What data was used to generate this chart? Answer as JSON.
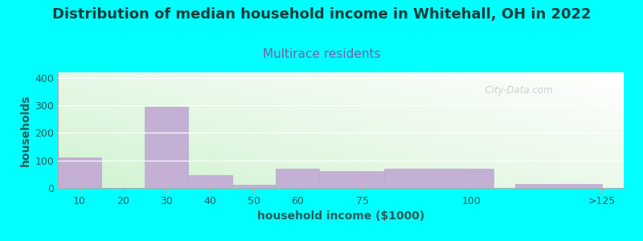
{
  "title": "Distribution of median household income in Whitehall, OH in 2022",
  "subtitle": "Multirace residents",
  "xlabel": "household income ($1000)",
  "ylabel": "households",
  "background_color": "#00FFFF",
  "bar_color": "#C4B0D5",
  "bar_edge_color": "#B8A8CC",
  "title_fontsize": 13,
  "title_fontweight": "bold",
  "title_color": "#1a3a3a",
  "subtitle_fontsize": 11,
  "subtitle_color": "#7B5EA7",
  "axis_label_fontsize": 10,
  "axis_label_color": "#2a5a5a",
  "tick_fontsize": 9,
  "watermark": "  City-Data.com",
  "ylim": [
    0,
    420
  ],
  "yticks": [
    0,
    100,
    200,
    300,
    400
  ],
  "bar_lefts": [
    5,
    15,
    25,
    35,
    45,
    55,
    65,
    80,
    110
  ],
  "bar_widths": [
    10,
    10,
    10,
    10,
    10,
    10,
    15,
    25,
    20
  ],
  "values": [
    110,
    0,
    295,
    48,
    12,
    70,
    60,
    70,
    14
  ],
  "xtick_positions": [
    10,
    20,
    30,
    40,
    50,
    60,
    75,
    100,
    130
  ],
  "xtick_labels": [
    "10",
    "20",
    "30",
    "40",
    "50",
    "60",
    "75",
    "100",
    ">125"
  ],
  "xlim": [
    5,
    135
  ],
  "grad_green": [
    0.82,
    0.95,
    0.82
  ],
  "grad_white": [
    1.0,
    1.0,
    1.0
  ]
}
